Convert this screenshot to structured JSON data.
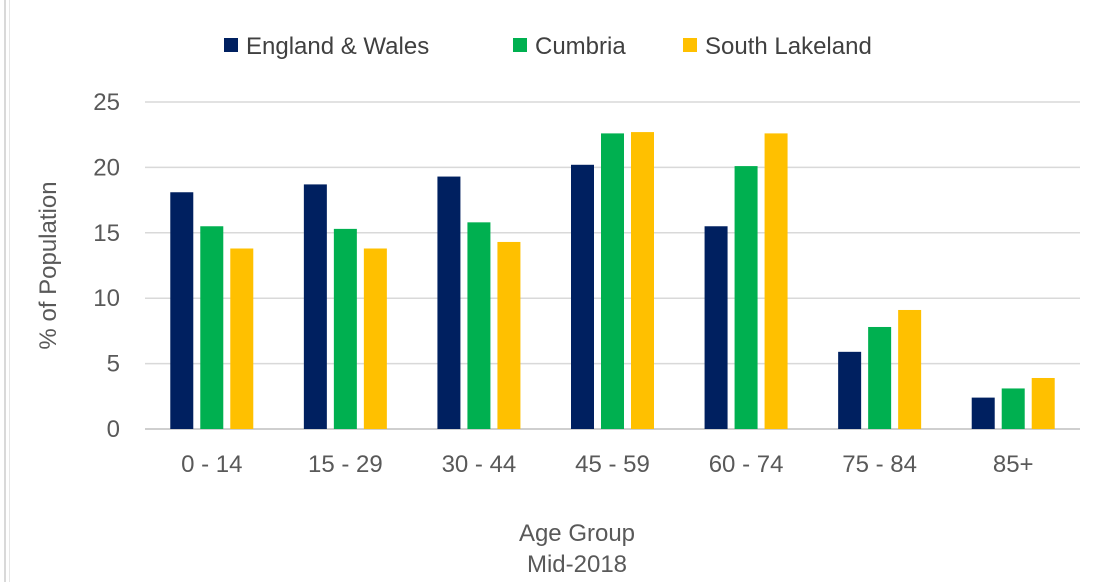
{
  "chart_data": {
    "type": "bar",
    "title": "",
    "xlabel": "Age Group",
    "xlabel_line2": "Mid-2018",
    "ylabel": "% of Population",
    "ylim": [
      0,
      25
    ],
    "yticks": [
      0,
      5,
      10,
      15,
      20,
      25
    ],
    "grid": true,
    "legend_position": "top",
    "categories": [
      "0 - 14",
      "15 - 29",
      "30 - 44",
      "45 - 59",
      "60 - 74",
      "75 - 84",
      "85+"
    ],
    "series": [
      {
        "name": "England & Wales",
        "color": "#002060",
        "values": [
          18.1,
          18.7,
          19.3,
          20.2,
          15.5,
          5.9,
          2.4
        ]
      },
      {
        "name": "Cumbria",
        "color": "#00b050",
        "values": [
          15.5,
          15.3,
          15.8,
          22.6,
          20.1,
          7.8,
          3.1
        ]
      },
      {
        "name": "South Lakeland",
        "color": "#ffc000",
        "values": [
          13.8,
          13.8,
          14.3,
          22.7,
          22.6,
          9.1,
          3.9
        ]
      }
    ]
  }
}
